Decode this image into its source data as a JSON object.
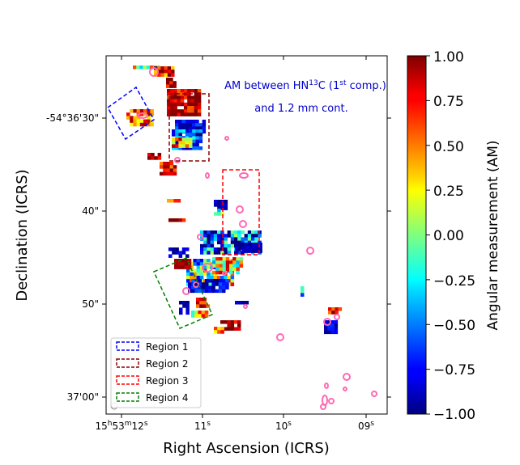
{
  "chart_data": {
    "type": "heatmap",
    "title": "",
    "annotation": {
      "line1_pre": "AM between HN",
      "line1_sup": "13",
      "line1_mid": "C (1",
      "line1_sup2": "st",
      "line1_post": " comp.)",
      "line2": "and 1.2 mm cont."
    },
    "xlabel": "Right Ascension (ICRS)",
    "ylabel": "Declination (ICRS)",
    "x_ticks": [
      {
        "pre": "15",
        "h": "h",
        "mid": "53",
        "m": "m",
        "post": "12",
        "s": "s",
        "label_full": "15h53m12s"
      },
      {
        "pre": "",
        "h": "",
        "mid": "",
        "m": "",
        "post": "11",
        "s": "s",
        "label_full": "11s"
      },
      {
        "pre": "",
        "h": "",
        "mid": "",
        "m": "",
        "post": "10",
        "s": "s",
        "label_full": "10s"
      },
      {
        "pre": "",
        "h": "",
        "mid": "",
        "m": "",
        "post": "09",
        "s": "s",
        "label_full": "09s"
      }
    ],
    "y_ticks": [
      "-54°36'30\"",
      "40\"",
      "50\"",
      "37'00\""
    ],
    "colorbar": {
      "label": "Angular measurement (AM)",
      "range": [
        -1.0,
        1.0
      ],
      "ticks": [
        "1.00",
        "0.75",
        "0.50",
        "0.25",
        "0.00",
        "−0.25",
        "−0.50",
        "−0.75",
        "−1.00"
      ],
      "colormap": "jet"
    },
    "legend": {
      "placement": "lower-left",
      "entries": [
        {
          "name": "Region 1",
          "color": "#0000ff"
        },
        {
          "name": "Region 2",
          "color": "#8b0000"
        },
        {
          "name": "Region 3",
          "color": "#ff0000"
        },
        {
          "name": "Region 4",
          "color": "#008000"
        }
      ]
    },
    "contour_color": "#ff69b4",
    "pixels_note": "AM values of masked pixels, -1 to 1, spatially distributed along the filament"
  }
}
